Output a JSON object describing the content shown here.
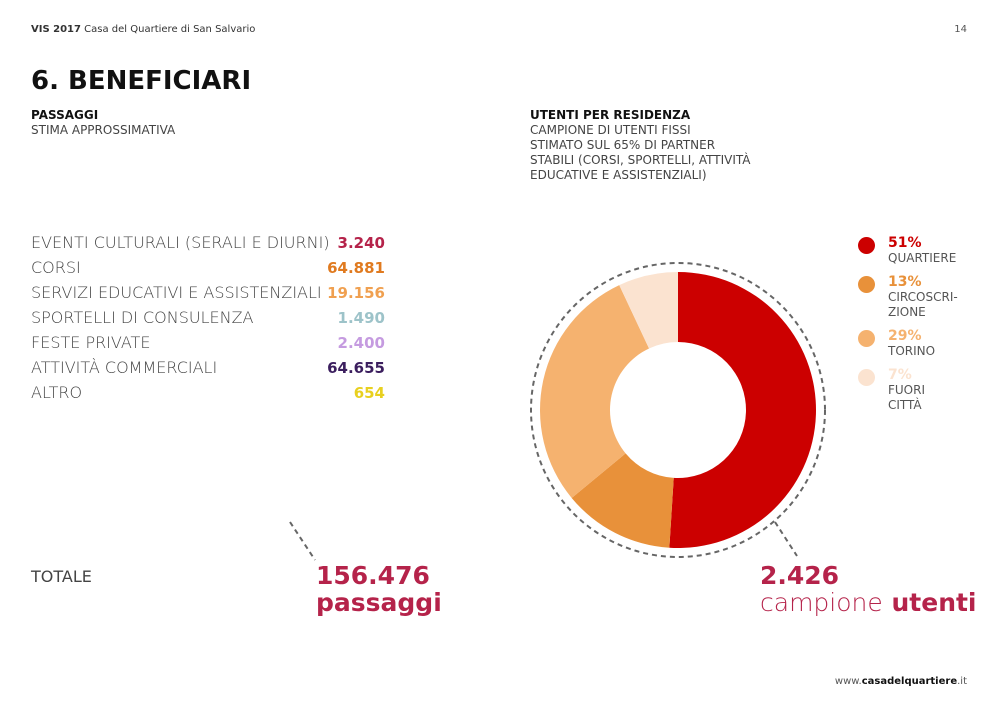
{
  "header": {
    "brand": "VIS 2017",
    "subtitle": "Casa del Quartiere di San Salvario",
    "page": "14"
  },
  "title": "6. BENEFICIARI",
  "passaggi": {
    "heading": "PASSAGGI",
    "note": "STIMA APPROSSIMATIVA",
    "items": [
      {
        "label": "EVENTI CULTURALI (SERALI E DIURNI)",
        "value": "3.240",
        "color": "#b5234a"
      },
      {
        "label": "CORSI",
        "value": "64.881",
        "color": "#e07a1f"
      },
      {
        "label": "SERVIZI EDUCATIVI E ASSISTENZIALI",
        "value": "19.156",
        "color": "#f0a050"
      },
      {
        "label": "SPORTELLI DI CONSULENZA",
        "value": "1.490",
        "color": "#9dc3c9"
      },
      {
        "label": "FESTE PRIVATE",
        "value": "2.400",
        "color": "#c59be0"
      },
      {
        "label": "ATTIVITÀ COMMERCIALI",
        "value": "64.655",
        "color": "#3b1e5e"
      },
      {
        "label": "ALTRO",
        "value": "654",
        "color": "#e8d020"
      }
    ],
    "total_label": "TOTALE",
    "total_value": "156.476",
    "total_unit": "passaggi"
  },
  "utenti": {
    "heading": "UTENTI PER RESIDENZA",
    "note": [
      "CAMPIONE DI UTENTI FISSI",
      "STIMATO SUL 65% DI PARTNER",
      "STABILI (CORSI, SPORTELLI, ATTIVITÀ",
      "EDUCATIVE E ASSISTENZIALI)"
    ],
    "total_value": "2.426",
    "total_word1": "campione",
    "total_word2": "utenti"
  },
  "chart_data": {
    "type": "donut",
    "categories": [
      "QUARTIERE",
      "CIRCOSCRI-ZIONE",
      "TORINO",
      "FUORI CITTÀ"
    ],
    "values": [
      51,
      13,
      29,
      7
    ],
    "value_labels": [
      "51%",
      "13%",
      "29%",
      "7%"
    ],
    "colors": [
      "#cc0000",
      "#e8913a",
      "#f5b26f",
      "#fbe3d0"
    ]
  },
  "footer": {
    "prefix": "www.",
    "site": "casadelquartiere",
    "suffix": ".it"
  }
}
